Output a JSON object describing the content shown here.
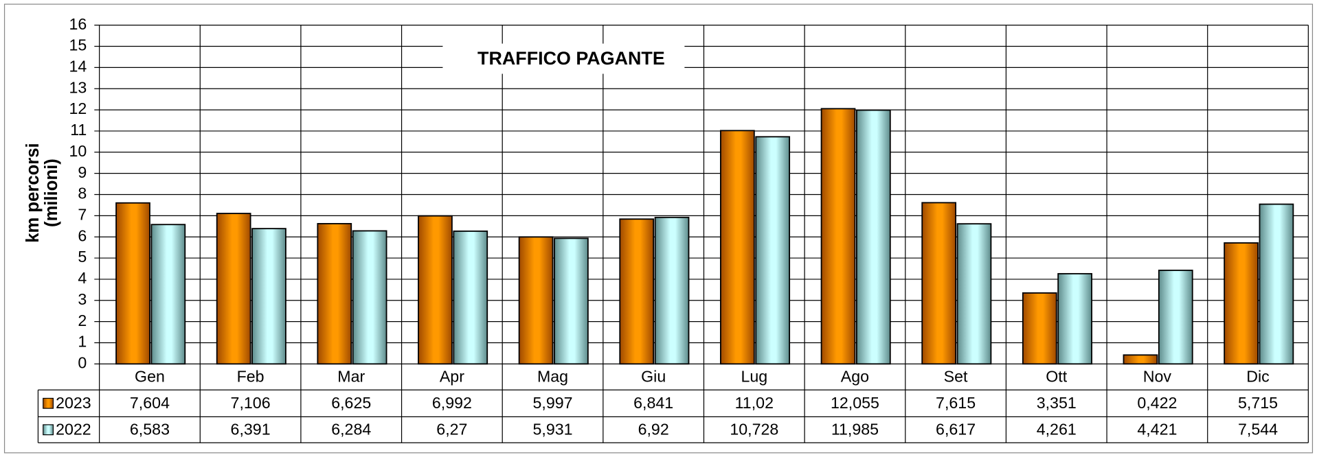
{
  "chart_data": {
    "type": "bar",
    "title": "TRAFFICO PAGANTE",
    "ylabel": [
      "km percorsi",
      "(milioni)"
    ],
    "categories": [
      "Gen",
      "Feb",
      "Mar",
      "Apr",
      "Mag",
      "Giu",
      "Lug",
      "Ago",
      "Set",
      "Ott",
      "Nov",
      "Dic"
    ],
    "series": [
      {
        "name": "2023",
        "color": "#ff9900",
        "values": [
          7.604,
          7.106,
          6.625,
          6.992,
          5.997,
          6.841,
          11.02,
          12.055,
          7.615,
          3.351,
          0.422,
          5.715
        ],
        "value_labels": [
          "7,604",
          "7,106",
          "6,625",
          "6,992",
          "5,997",
          "6,841",
          "11,02",
          "12,055",
          "7,615",
          "3,351",
          "0,422",
          "5,715"
        ]
      },
      {
        "name": "2022",
        "color": "#ccffff",
        "values": [
          6.583,
          6.391,
          6.284,
          6.27,
          5.931,
          6.92,
          10.728,
          11.985,
          6.617,
          4.261,
          4.421,
          7.544
        ],
        "value_labels": [
          "6,583",
          "6,391",
          "6,284",
          "6,27",
          "5,931",
          "6,92",
          "10,728",
          "11,985",
          "6,617",
          "4,261",
          "4,421",
          "7,544"
        ]
      }
    ],
    "ylim": [
      0,
      16
    ],
    "yticks": [
      0,
      1,
      2,
      3,
      4,
      5,
      6,
      7,
      8,
      9,
      10,
      11,
      12,
      13,
      14,
      15,
      16
    ],
    "grid": true
  }
}
